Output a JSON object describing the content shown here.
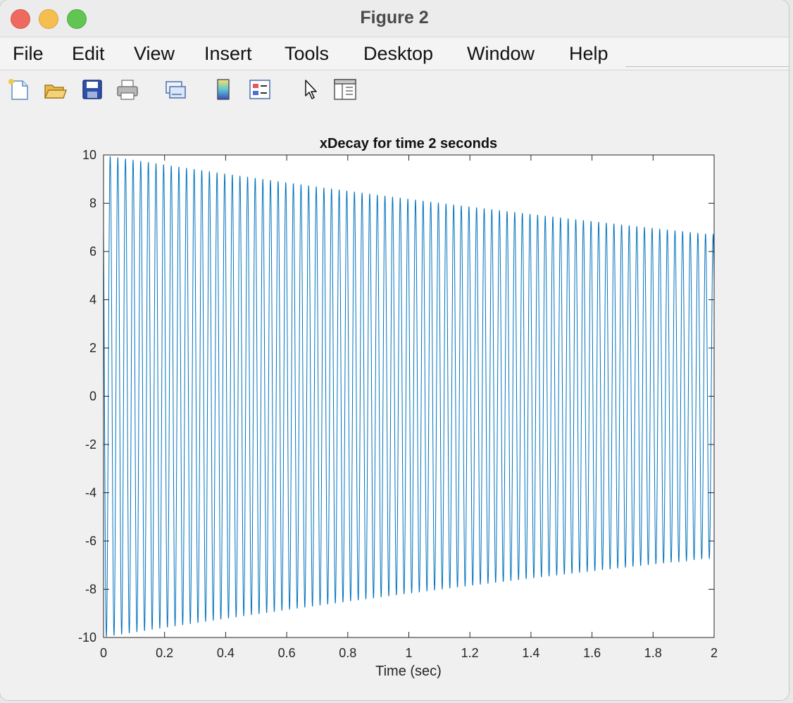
{
  "window": {
    "title": "Figure 2"
  },
  "menu": {
    "items": [
      "File",
      "Edit",
      "View",
      "Insert",
      "Tools",
      "Desktop",
      "Window",
      "Help"
    ]
  },
  "toolbar": {
    "icons": [
      "new-figure-icon",
      "open-file-icon",
      "save-icon",
      "print-icon",
      "link-plot-icon",
      "colorbar-icon",
      "legend-icon",
      "pointer-icon",
      "property-inspector-icon"
    ]
  },
  "chart_data": {
    "type": "line",
    "title": "xDecay for time 2 seconds",
    "xlabel": "Time (sec)",
    "ylabel": "",
    "xlim": [
      0,
      2
    ],
    "ylim": [
      -10,
      10
    ],
    "xticks": [
      "0",
      "0.2",
      "0.4",
      "0.6",
      "0.8",
      "1",
      "1.2",
      "1.4",
      "1.6",
      "1.8",
      "2"
    ],
    "yticks": [
      "10",
      "8",
      "6",
      "4",
      "2",
      "0",
      "-2",
      "-4",
      "-6",
      "-8",
      "-10"
    ],
    "series": [
      {
        "function": "damped cosine",
        "amplitude": 10,
        "decay_rate": 0.2,
        "frequency_hz": 40,
        "color": "#0072BD",
        "envelope_start": 10,
        "envelope_end": 6.7
      }
    ],
    "grid": false,
    "box": true
  },
  "colors": {
    "line": "#0072BD",
    "axes_bg": "#ffffff",
    "figure_bg": "#f0f0f0"
  }
}
